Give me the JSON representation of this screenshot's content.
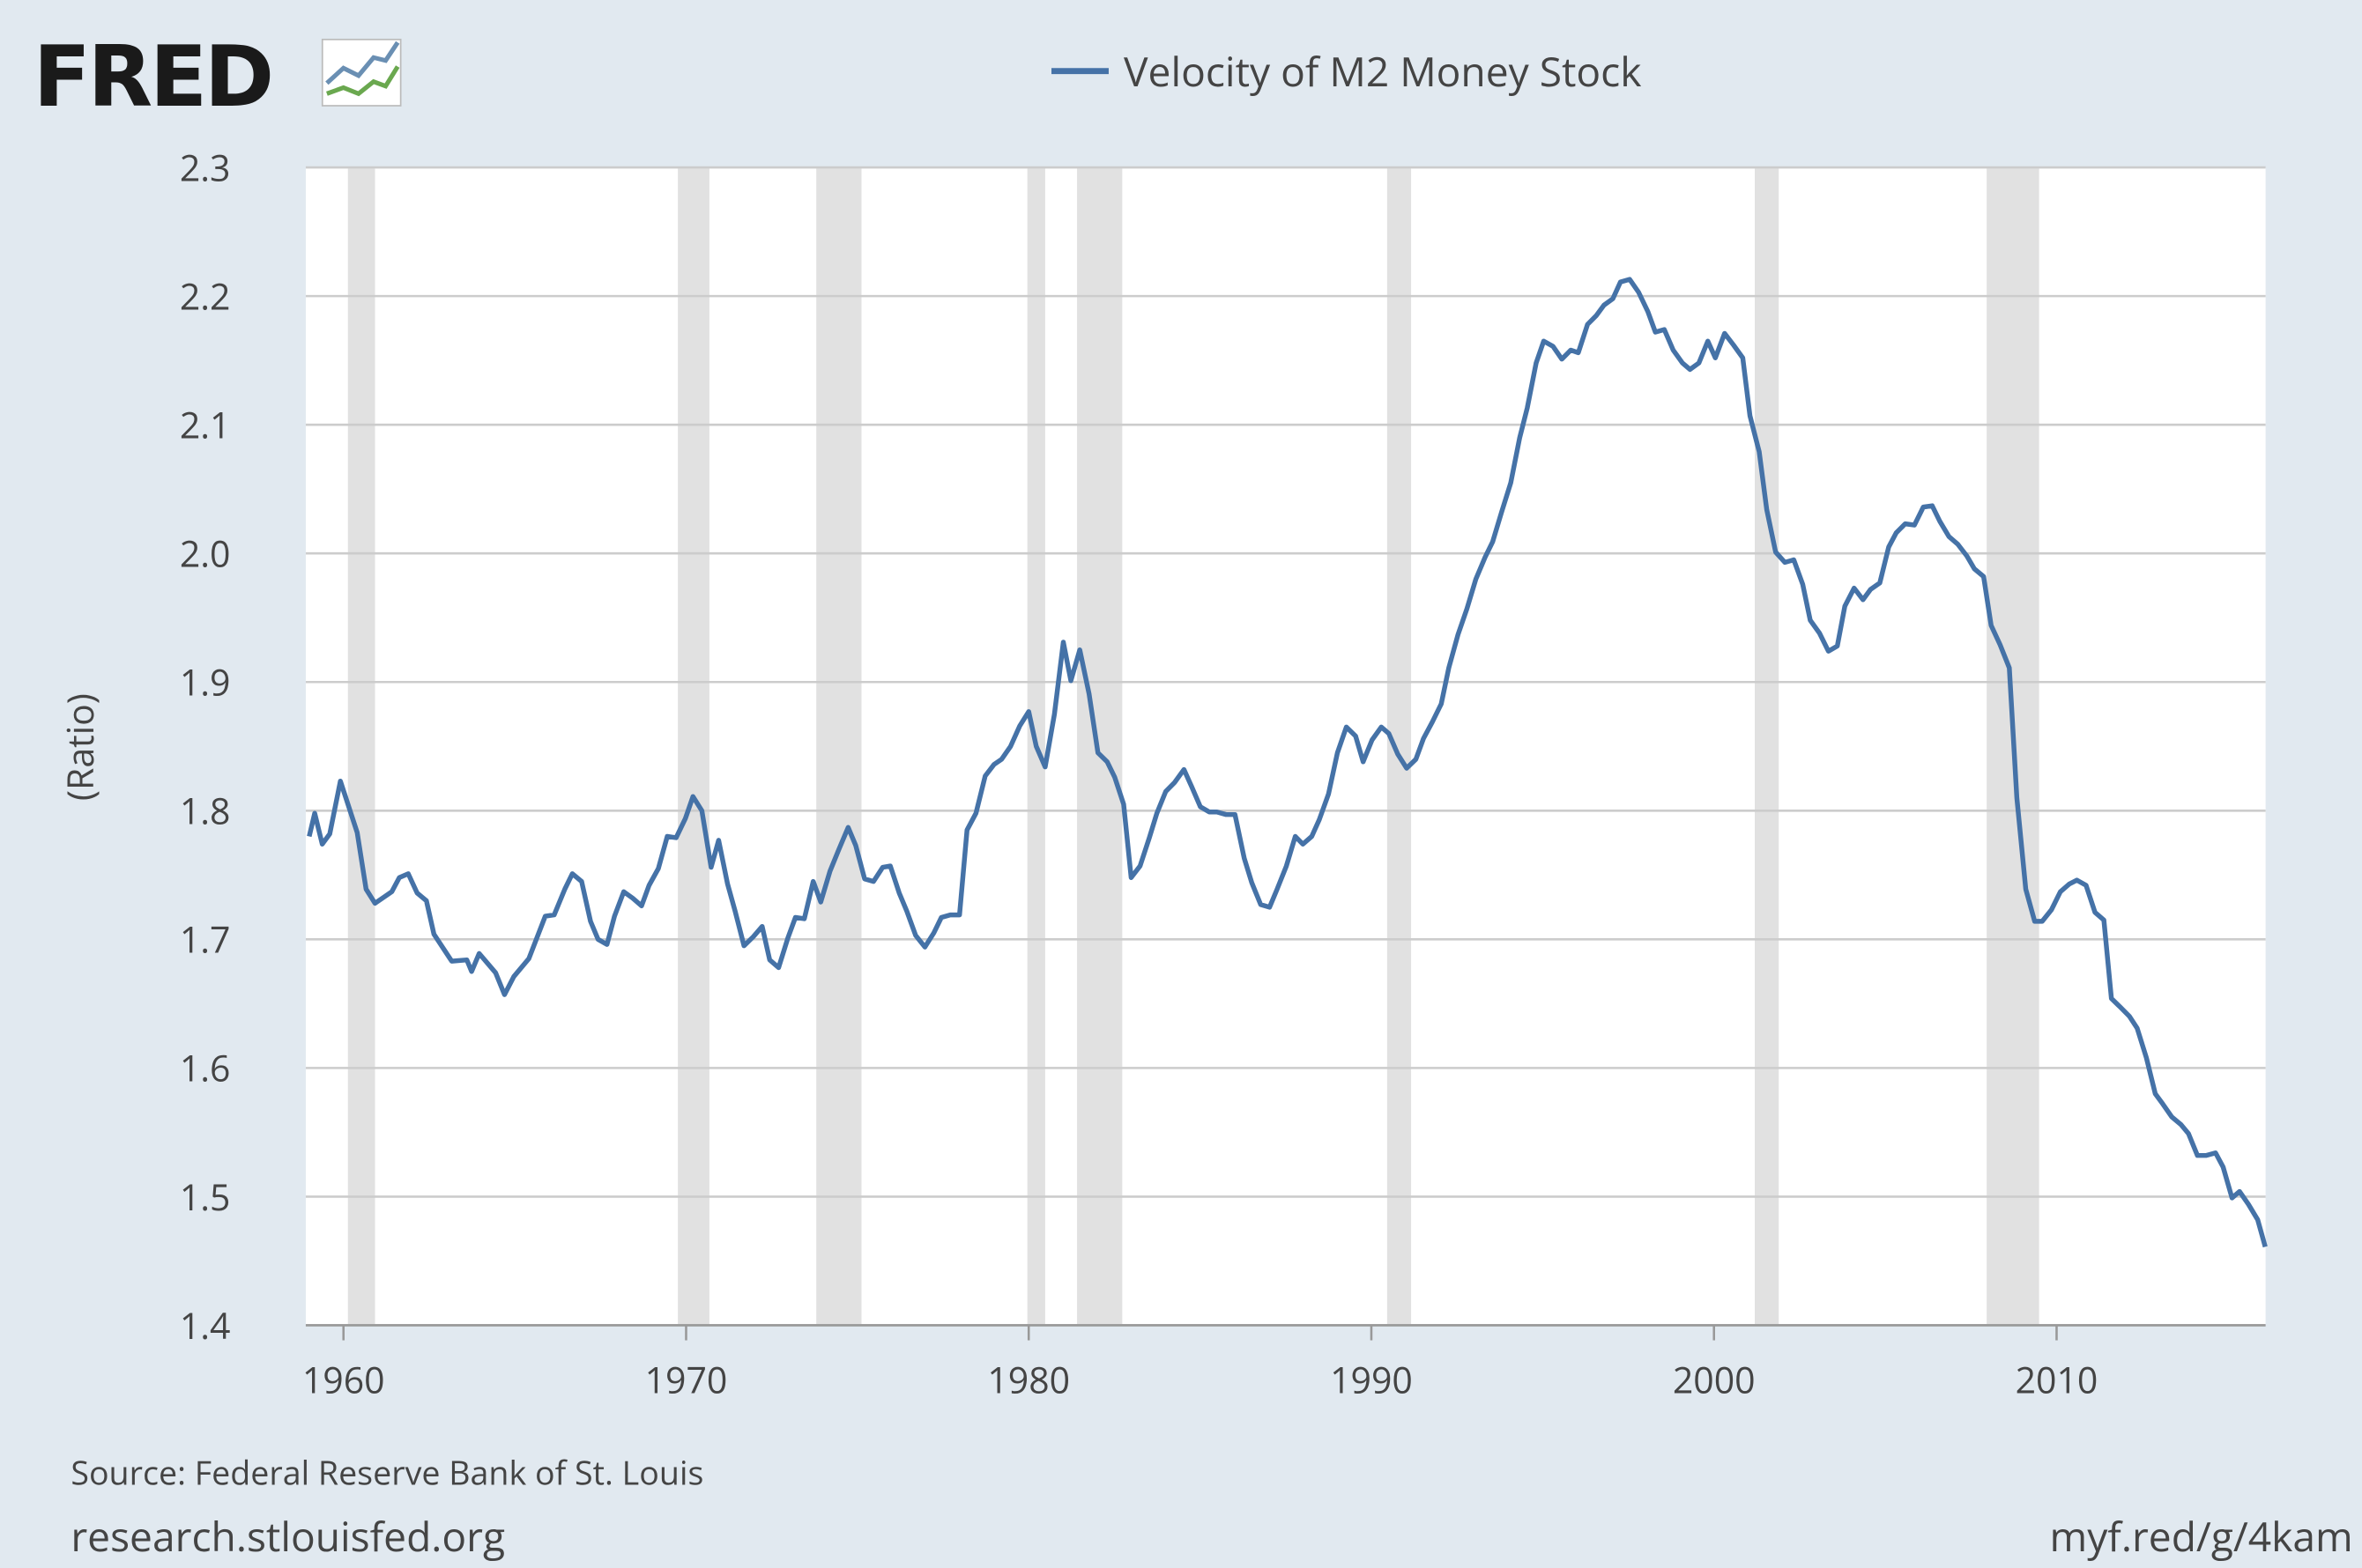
{
  "logo": "FRED",
  "chart_data": {
    "type": "line",
    "y_label": "(Ratio)",
    "source": "Source: Federal Reserve Bank of St. Louis",
    "site": "research.stlouisfed.org",
    "short_url": "myf.red/g/4kam",
    "xlim": [
      1958.9,
      2016.1
    ],
    "xticks": [
      1960,
      1970,
      1980,
      1990,
      2000,
      2010
    ],
    "ylim": [
      1.4,
      2.3
    ],
    "yticks": [
      1.4,
      1.5,
      1.6,
      1.7,
      1.8,
      1.9,
      {
        "value": 2,
        "label": "2.0"
      },
      2.1,
      2.2,
      2.3
    ],
    "grid": true,
    "recession_color": "#e1e1e1",
    "recessions": [
      [
        1960.13,
        1960.92
      ],
      [
        1969.76,
        1970.68
      ],
      [
        1973.8,
        1975.12
      ],
      [
        1979.96,
        1980.48
      ],
      [
        1981.41,
        1982.73
      ],
      [
        1990.46,
        1991.16
      ],
      [
        2001.19,
        2001.89
      ],
      [
        2007.96,
        2009.49
      ]
    ],
    "x": [
      1959.0,
      1959.16,
      1959.38,
      1959.6,
      1959.91,
      1960.4,
      1960.66,
      1960.92,
      1961.41,
      1961.63,
      1961.89,
      1962.15,
      1962.42,
      1962.64,
      1963.16,
      1963.6,
      1963.74,
      1963.96,
      1964.44,
      1964.7,
      1964.97,
      1965.41,
      1965.89,
      1966.15,
      1966.46,
      1966.68,
      1966.95,
      1967.21,
      1967.43,
      1967.69,
      1967.91,
      1968.18,
      1968.44,
      1968.7,
      1968.92,
      1969.19,
      1969.45,
      1969.71,
      1969.98,
      1970.2,
      1970.46,
      1970.73,
      1970.95,
      1971.21,
      1971.43,
      1971.69,
      1971.96,
      1972.22,
      1972.44,
      1972.7,
      1972.97,
      1973.19,
      1973.45,
      1973.71,
      1973.93,
      1974.2,
      1974.46,
      1974.73,
      1974.95,
      1975.21,
      1975.47,
      1975.74,
      1975.96,
      1976.22,
      1976.44,
      1976.7,
      1976.97,
      1977.23,
      1977.45,
      1977.71,
      1977.98,
      1978.2,
      1978.46,
      1978.73,
      1978.99,
      1979.21,
      1979.47,
      1979.74,
      1980.0,
      1980.22,
      1980.48,
      1980.75,
      1981.01,
      1981.23,
      1981.49,
      1981.76,
      1982.02,
      1982.29,
      1982.51,
      1982.77,
      1982.99,
      1983.25,
      1983.52,
      1983.74,
      1984.0,
      1984.26,
      1984.53,
      1984.75,
      1985.01,
      1985.27,
      1985.49,
      1985.76,
      1986.02,
      1986.29,
      1986.51,
      1986.77,
      1987.03,
      1987.25,
      1987.52,
      1987.78,
      1988.0,
      1988.26,
      1988.48,
      1988.75,
      1989.01,
      1989.27,
      1989.54,
      1989.76,
      1990.02,
      1990.29,
      1990.51,
      1990.77,
      1991.03,
      1991.3,
      1991.52,
      1991.78,
      1992.04,
      1992.26,
      1992.53,
      1992.79,
      1993.05,
      1993.32,
      1993.54,
      1993.8,
      1994.07,
      1994.33,
      1994.55,
      1994.81,
      1995.03,
      1995.3,
      1995.56,
      1995.82,
      1996.04,
      1996.31,
      1996.57,
      1996.79,
      1997.05,
      1997.27,
      1997.54,
      1997.8,
      1998.07,
      1998.29,
      1998.55,
      1998.81,
      1999.08,
      1999.3,
      1999.56,
      1999.82,
      2000.04,
      2000.31,
      2000.57,
      2000.84,
      2001.05,
      2001.32,
      2001.54,
      2001.8,
      2002.07,
      2002.33,
      2002.59,
      2002.81,
      2003.08,
      2003.34,
      2003.6,
      2003.82,
      2004.09,
      2004.35,
      2004.57,
      2004.84,
      2005.1,
      2005.32,
      2005.58,
      2005.85,
      2006.11,
      2006.37,
      2006.59,
      2006.86,
      2007.12,
      2007.38,
      2007.6,
      2007.87,
      2008.09,
      2008.35,
      2008.62,
      2008.84,
      2009.1,
      2009.36,
      2009.58,
      2009.85,
      2010.11,
      2010.37,
      2010.59,
      2010.86,
      2011.12,
      2011.38,
      2011.6,
      2011.87,
      2012.13,
      2012.35,
      2012.62,
      2012.88,
      2013.1,
      2013.36,
      2013.63,
      2013.85,
      2014.11,
      2014.37,
      2014.64,
      2014.86,
      2015.12,
      2015.34,
      2015.6,
      2015.87,
      2016.09
    ],
    "series": [
      {
        "name": "Velocity of M2 Money Stock",
        "color": "#4572a7",
        "values": [
          1.78,
          1.798,
          1.774,
          1.782,
          1.823,
          1.783,
          1.739,
          1.728,
          1.737,
          1.748,
          1.751,
          1.736,
          1.73,
          1.704,
          1.683,
          1.684,
          1.675,
          1.689,
          1.674,
          1.657,
          1.671,
          1.685,
          1.718,
          1.719,
          1.739,
          1.751,
          1.745,
          1.714,
          1.7,
          1.696,
          1.718,
          1.737,
          1.732,
          1.726,
          1.742,
          1.755,
          1.78,
          1.779,
          1.794,
          1.811,
          1.8,
          1.756,
          1.777,
          1.743,
          1.722,
          1.695,
          1.702,
          1.71,
          1.684,
          1.678,
          1.701,
          1.717,
          1.716,
          1.745,
          1.729,
          1.753,
          1.77,
          1.787,
          1.773,
          1.747,
          1.745,
          1.756,
          1.757,
          1.736,
          1.722,
          1.703,
          1.694,
          1.705,
          1.717,
          1.719,
          1.719,
          1.785,
          1.798,
          1.827,
          1.836,
          1.84,
          1.85,
          1.866,
          1.877,
          1.85,
          1.834,
          1.875,
          1.931,
          1.901,
          1.925,
          1.891,
          1.845,
          1.838,
          1.826,
          1.805,
          1.748,
          1.757,
          1.779,
          1.798,
          1.815,
          1.822,
          1.832,
          1.819,
          1.803,
          1.799,
          1.799,
          1.797,
          1.797,
          1.763,
          1.744,
          1.727,
          1.725,
          1.739,
          1.757,
          1.78,
          1.774,
          1.78,
          1.793,
          1.813,
          1.845,
          1.865,
          1.858,
          1.838,
          1.855,
          1.865,
          1.86,
          1.844,
          1.833,
          1.84,
          1.856,
          1.869,
          1.883,
          1.911,
          1.937,
          1.957,
          1.98,
          1.997,
          2.009,
          2.032,
          2.055,
          2.09,
          2.113,
          2.148,
          2.165,
          2.161,
          2.151,
          2.158,
          2.156,
          2.178,
          2.185,
          2.193,
          2.198,
          2.211,
          2.213,
          2.203,
          2.188,
          2.172,
          2.174,
          2.158,
          2.148,
          2.143,
          2.148,
          2.165,
          2.152,
          2.171,
          2.162,
          2.152,
          2.107,
          2.079,
          2.034,
          2.001,
          1.993,
          1.995,
          1.976,
          1.948,
          1.938,
          1.924,
          1.928,
          1.959,
          1.973,
          1.964,
          1.972,
          1.977,
          2.005,
          2.016,
          2.023,
          2.022,
          2.036,
          2.037,
          2.025,
          2.013,
          2.007,
          1.998,
          1.988,
          1.982,
          1.944,
          1.929,
          1.911,
          1.81,
          1.739,
          1.714,
          1.714,
          1.723,
          1.737,
          1.743,
          1.746,
          1.742,
          1.721,
          1.715,
          1.654,
          1.647,
          1.64,
          1.631,
          1.608,
          1.58,
          1.572,
          1.562,
          1.556,
          1.549,
          1.532,
          1.532,
          1.534,
          1.523,
          1.499,
          1.504,
          1.494,
          1.482,
          1.461
        ]
      }
    ]
  }
}
